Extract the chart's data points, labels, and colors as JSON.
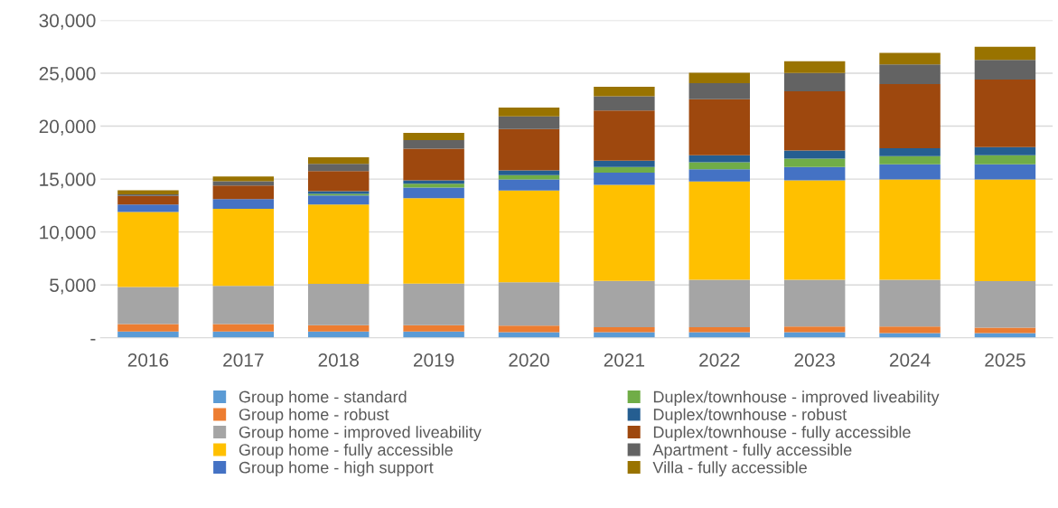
{
  "chart_data": {
    "type": "bar",
    "stacked": true,
    "categories": [
      "2016",
      "2017",
      "2018",
      "2019",
      "2020",
      "2021",
      "2022",
      "2023",
      "2024",
      "2025"
    ],
    "series": [
      {
        "name": "Group home - standard",
        "color": "#5b9bd5",
        "values": [
          600,
          600,
          600,
          600,
          530,
          530,
          530,
          530,
          440,
          440
        ]
      },
      {
        "name": "Group home - robust",
        "color": "#ed7d31",
        "values": [
          700,
          700,
          600,
          600,
          630,
          480,
          480,
          540,
          630,
          520
        ]
      },
      {
        "name": "Group home - improved liveability",
        "color": "#a5a5a5",
        "values": [
          3500,
          3600,
          3900,
          3920,
          4100,
          4370,
          4480,
          4420,
          4420,
          4390
        ]
      },
      {
        "name": "Group home - fully accessible",
        "color": "#ffc000",
        "values": [
          7100,
          7300,
          7500,
          8080,
          8670,
          9070,
          9280,
          9390,
          9480,
          9620
        ]
      },
      {
        "name": "Group home - high support",
        "color": "#4472c4",
        "values": [
          700,
          900,
          850,
          1000,
          1040,
          1160,
          1150,
          1270,
          1420,
          1420
        ]
      },
      {
        "name": "Duplex/townhouse - improved liveability",
        "color": "#70ad47",
        "values": [
          0,
          0,
          150,
          370,
          400,
          540,
          660,
          780,
          780,
          860
        ]
      },
      {
        "name": "Duplex/townhouse - robust",
        "color": "#255e91",
        "values": [
          0,
          0,
          250,
          310,
          460,
          580,
          670,
          780,
          740,
          780
        ]
      },
      {
        "name": "Duplex/townhouse - fully accessible",
        "color": "#9e480e",
        "values": [
          800,
          1300,
          1900,
          2980,
          3900,
          4740,
          5290,
          5590,
          6070,
          6380
        ]
      },
      {
        "name": "Apartment - fully accessible",
        "color": "#636363",
        "values": [
          150,
          400,
          700,
          830,
          1190,
          1360,
          1530,
          1730,
          1850,
          1850
        ]
      },
      {
        "name": "Villa - fully accessible",
        "color": "#997300",
        "values": [
          400,
          450,
          600,
          670,
          840,
          890,
          980,
          1110,
          1090,
          1240
        ]
      }
    ],
    "ylim": [
      0,
      30000
    ],
    "yticks": [
      {
        "value": 0,
        "label": "-"
      },
      {
        "value": 5000,
        "label": "5,000"
      },
      {
        "value": 10000,
        "label": "10,000"
      },
      {
        "value": 15000,
        "label": "15,000"
      },
      {
        "value": 20000,
        "label": "20,000"
      },
      {
        "value": 25000,
        "label": "25,000"
      },
      {
        "value": 30000,
        "label": "30,000"
      }
    ],
    "grid": "y",
    "legend": "bottom"
  }
}
